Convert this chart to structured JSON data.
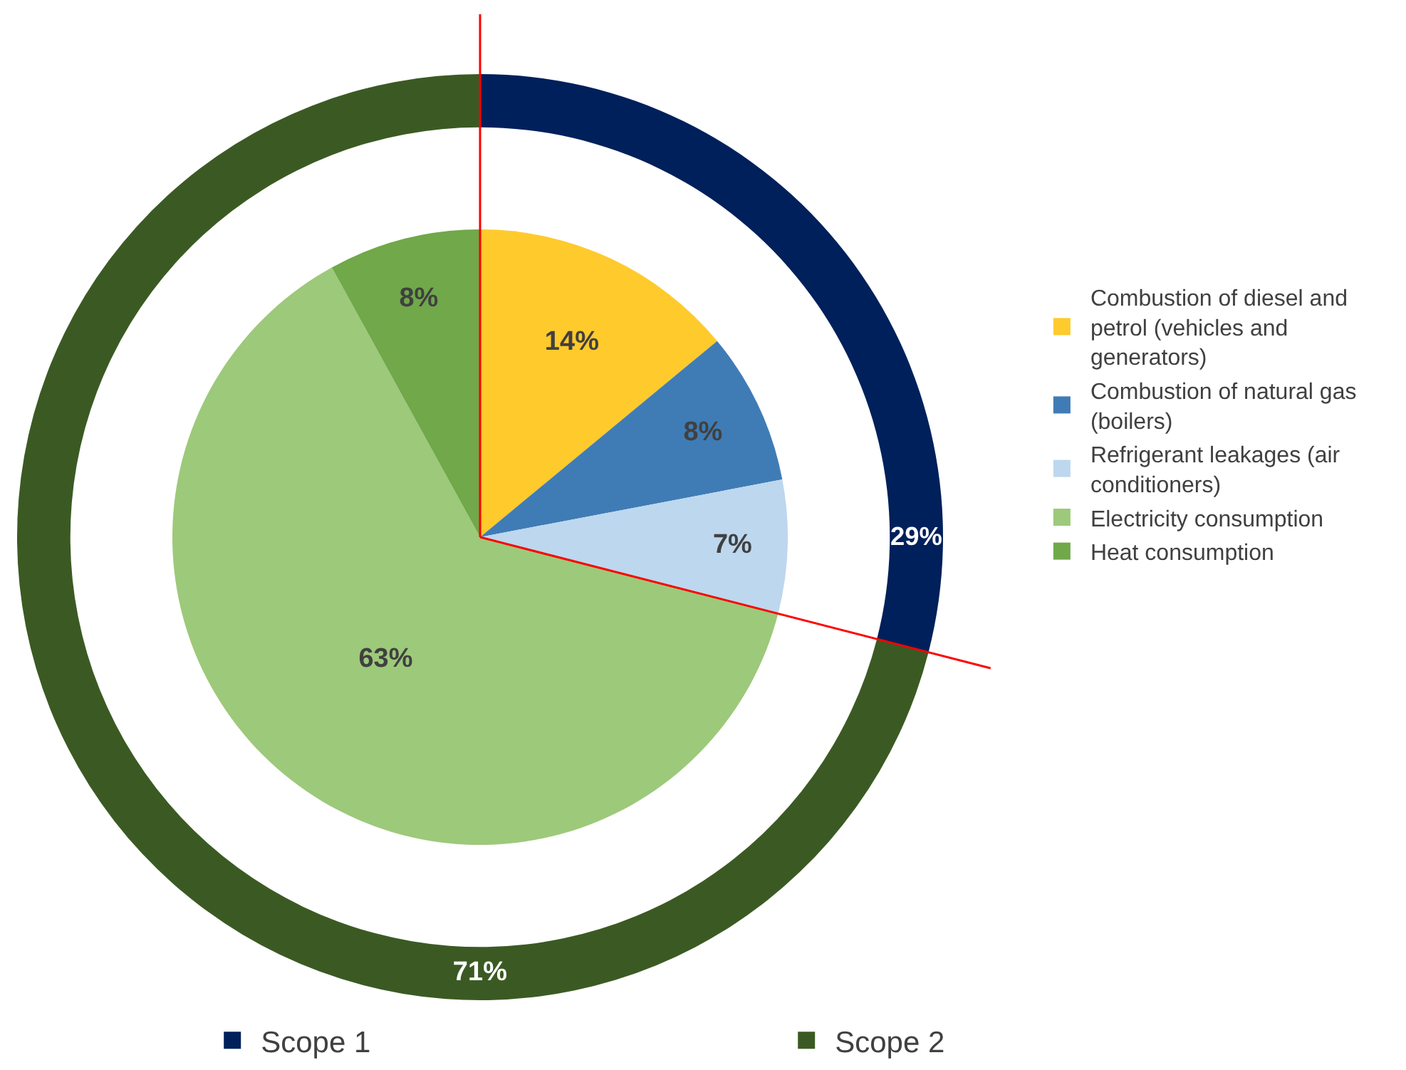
{
  "chart_data": [
    {
      "type": "pie",
      "categories": [
        "Combustion of diesel and petrol (vehicles and generators)",
        "Combustion of natural gas (boilers)",
        "Refrigerant leakages (air conditioners)",
        "Electricity consumption",
        "Heat consumption"
      ],
      "values": [
        14,
        8,
        7,
        63,
        8
      ],
      "value_labels": [
        "14%",
        "8%",
        "7%",
        "63%",
        "8%"
      ],
      "colors": [
        "#ffca2c",
        "#3f7cb5",
        "#bdd7ee",
        "#9dc97a",
        "#70a84a"
      ],
      "legend": "right"
    },
    {
      "type": "donut",
      "categories": [
        "Scope 1",
        "Scope 2"
      ],
      "values": [
        29,
        71
      ],
      "value_labels": [
        "29%",
        "71%"
      ],
      "colors": [
        "#00205b",
        "#3b5a23"
      ],
      "legend": "bottom"
    }
  ]
}
